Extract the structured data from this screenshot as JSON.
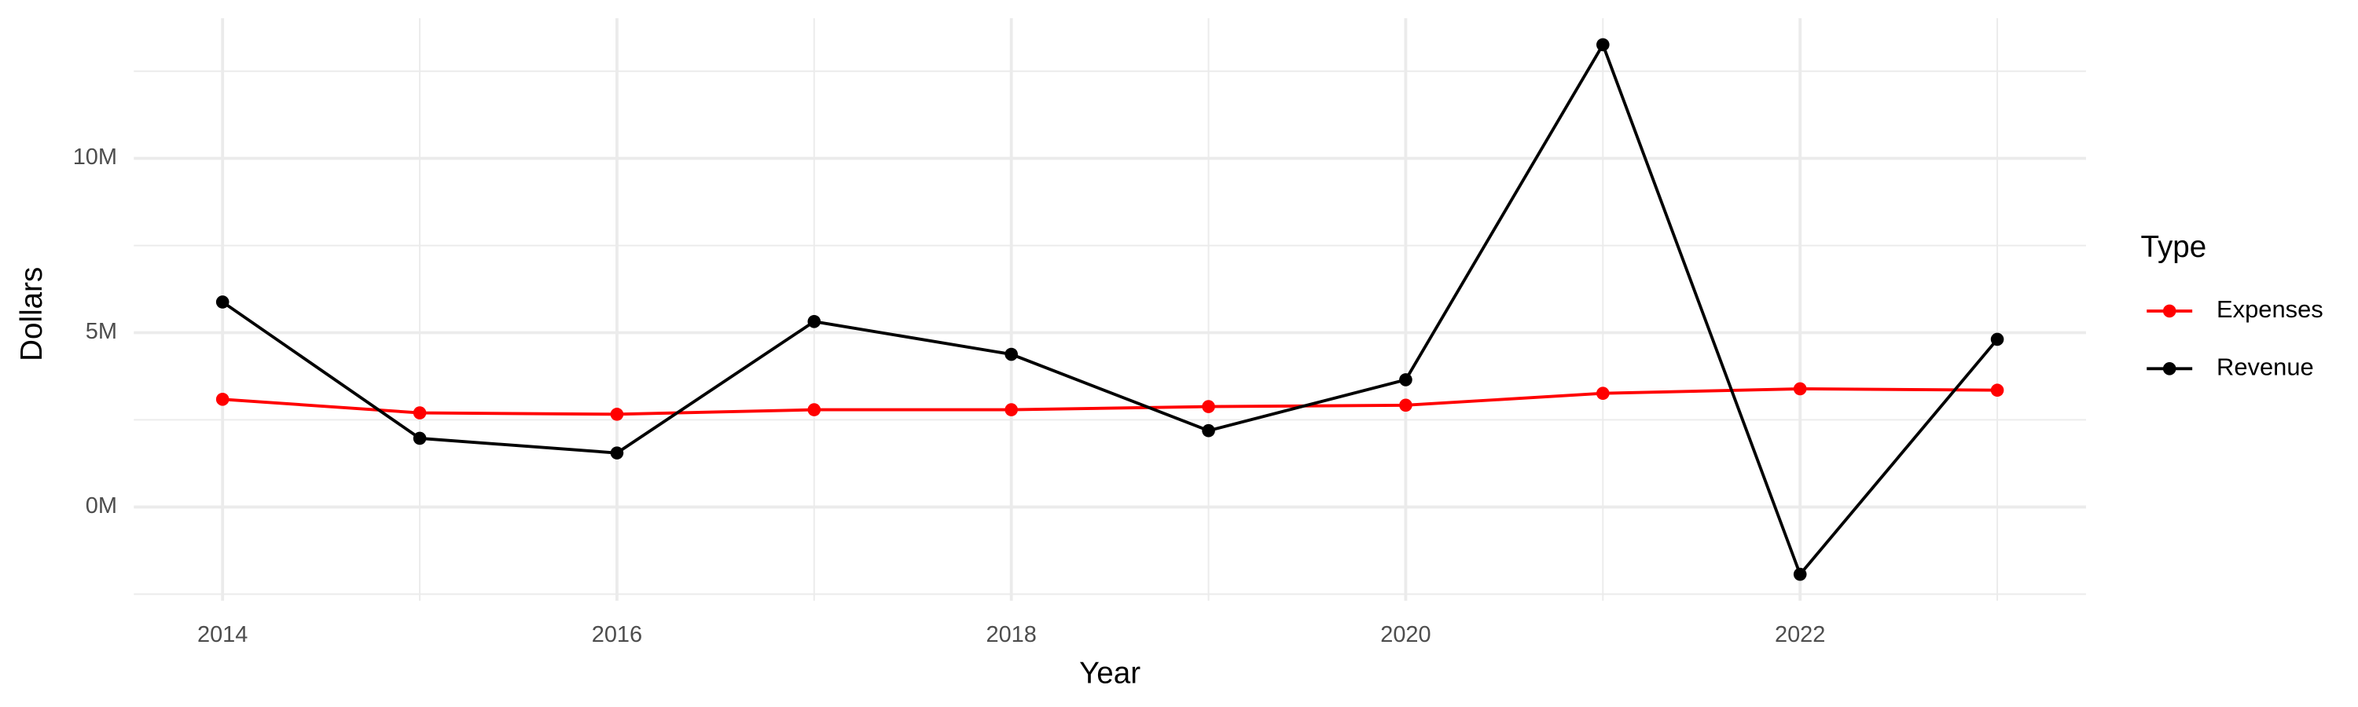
{
  "chart_data": {
    "type": "line",
    "x_label": "Year",
    "y_label": "Dollars",
    "legend_title": "Type",
    "legend_position": "right",
    "grid": true,
    "x": [
      2014,
      2015,
      2016,
      2017,
      2018,
      2019,
      2020,
      2021,
      2022,
      2023
    ],
    "series": [
      {
        "name": "Expenses",
        "color": "#ff0000",
        "values": [
          3090000,
          2700000,
          2660000,
          2790000,
          2790000,
          2880000,
          2920000,
          3260000,
          3390000,
          3350000
        ]
      },
      {
        "name": "Revenue",
        "color": "#000000",
        "values": [
          5880000,
          1970000,
          1550000,
          5320000,
          4380000,
          2190000,
          3650000,
          13260000,
          -1930000,
          4810000
        ]
      }
    ],
    "xlim": [
      2013.55,
      2023.45
    ],
    "xticks": [
      2014,
      2016,
      2018,
      2020,
      2022
    ],
    "ylim": [
      -2690000,
      14020000
    ],
    "yticks": [
      {
        "value": 0,
        "label": "0M"
      },
      {
        "value": 5000000,
        "label": "5M"
      },
      {
        "value": 10000000,
        "label": "10M"
      }
    ]
  }
}
